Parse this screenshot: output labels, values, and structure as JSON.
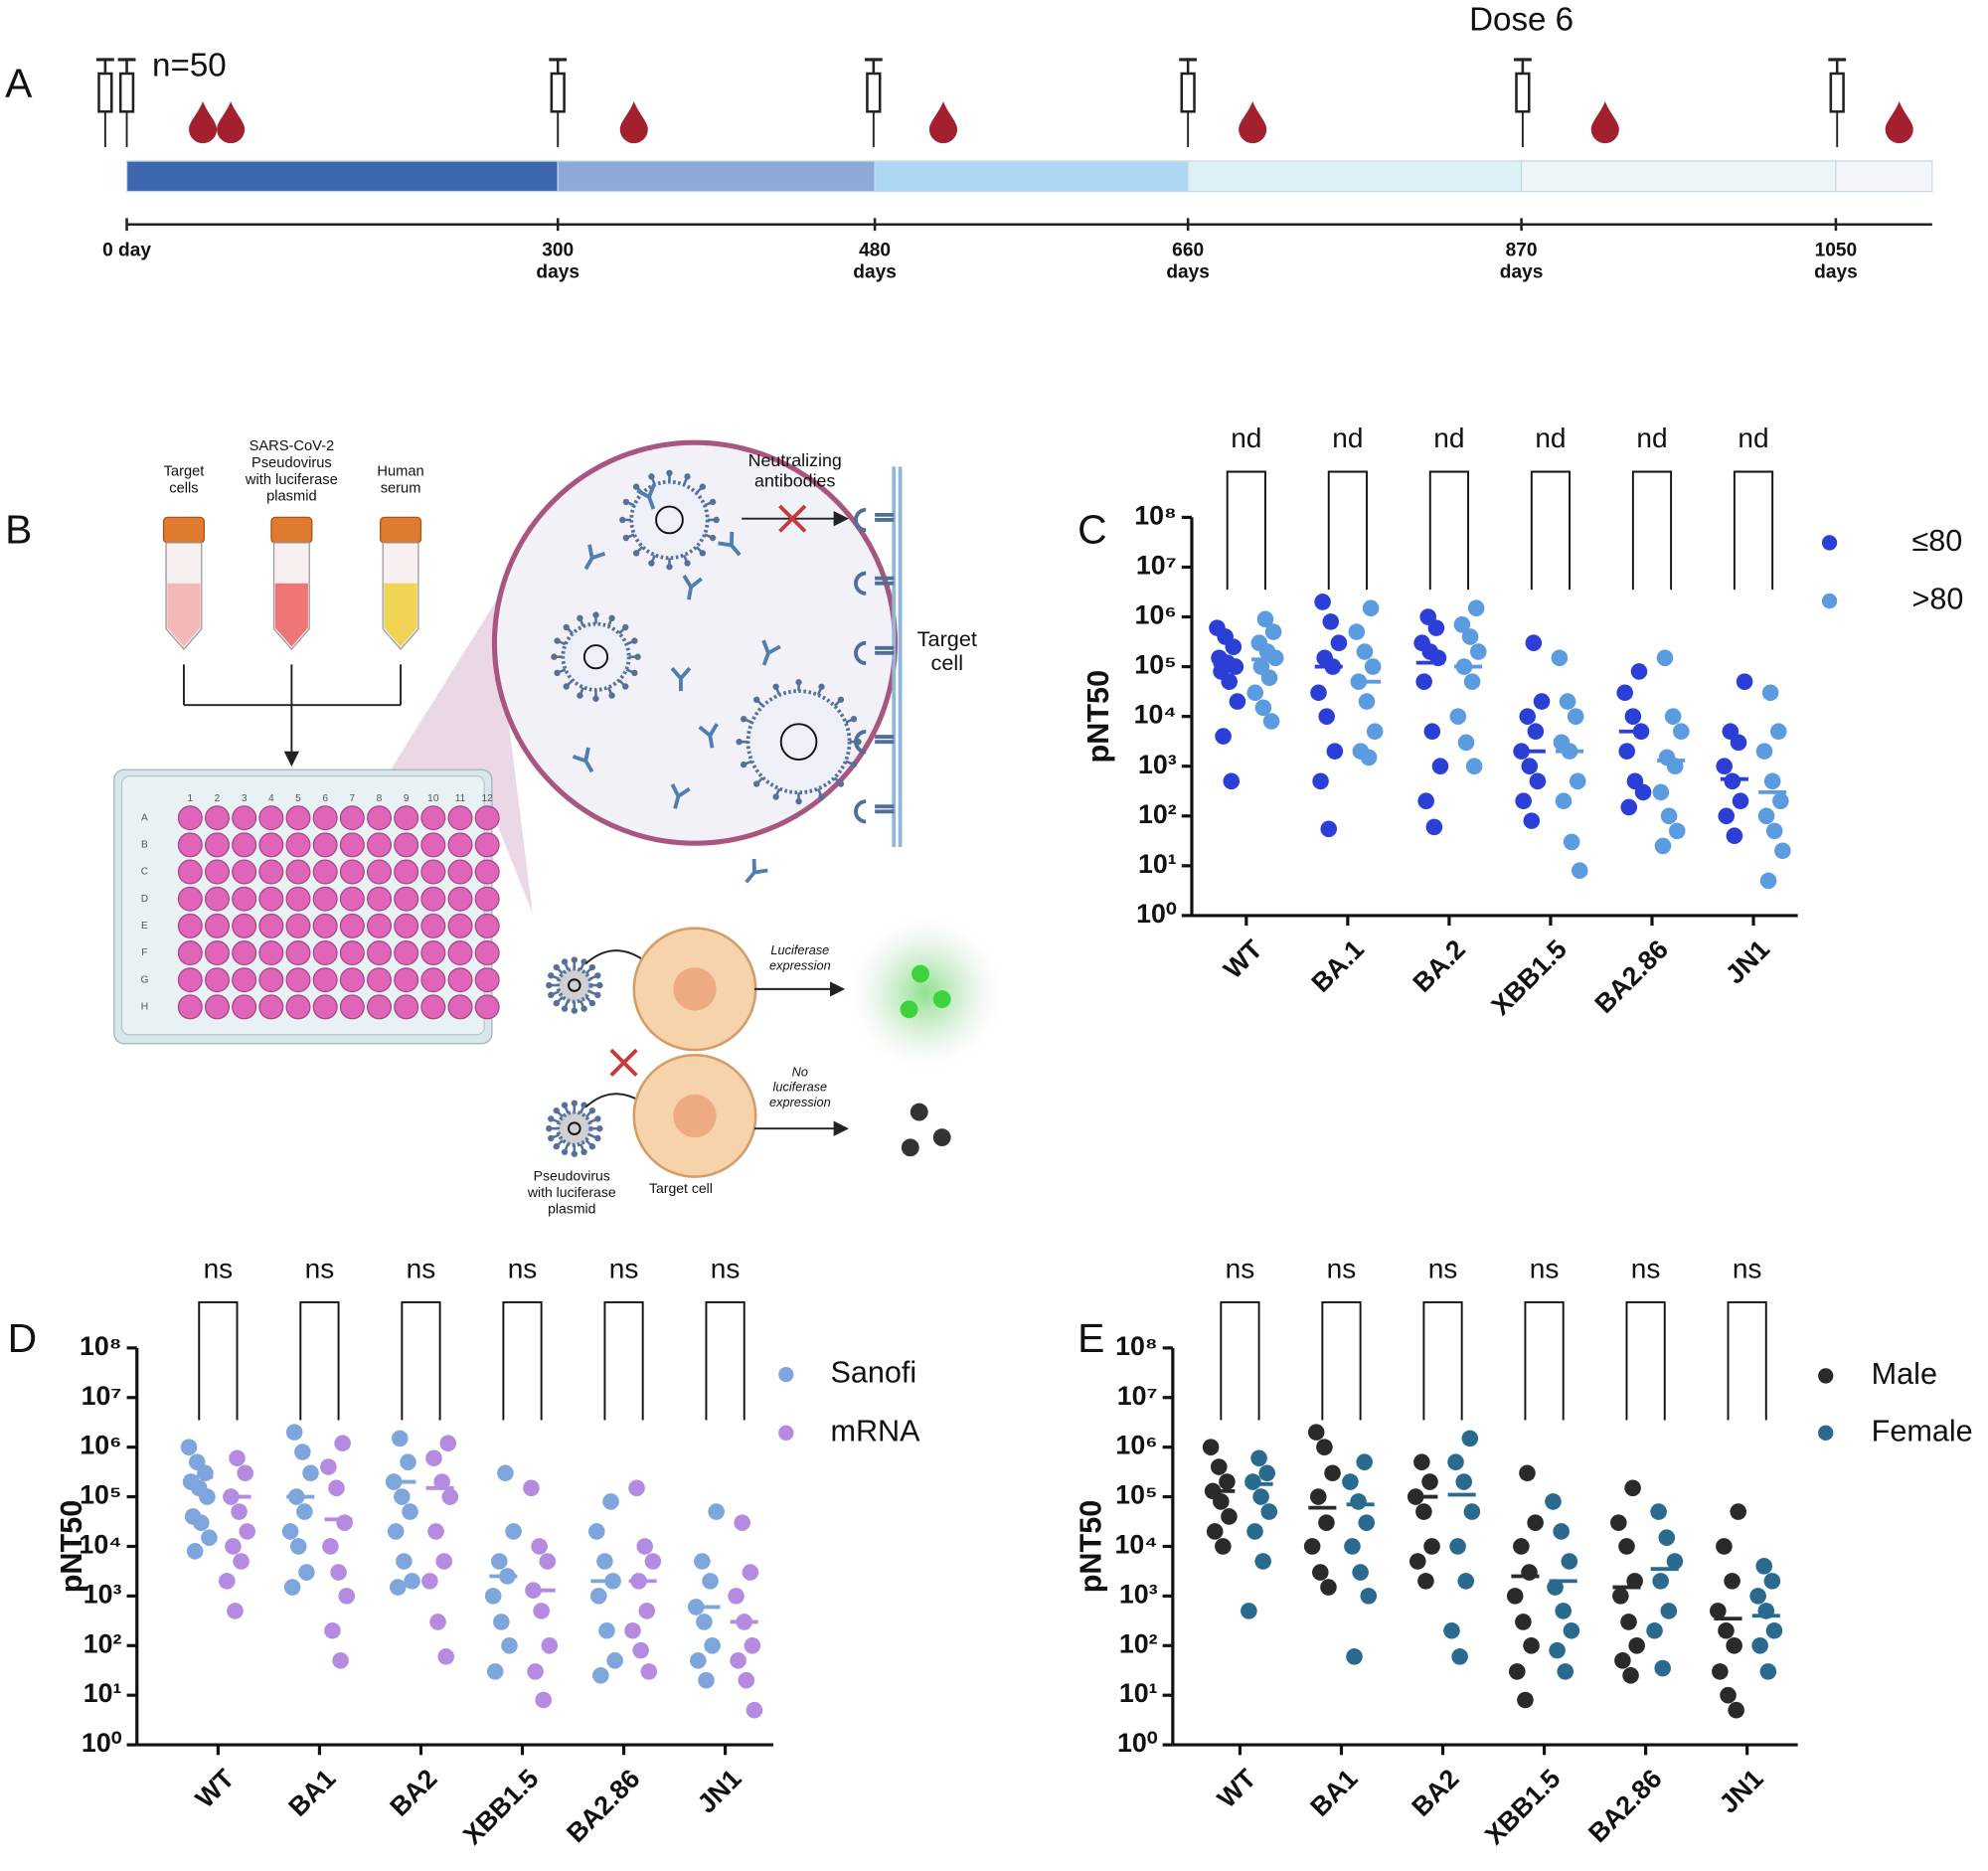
{
  "timeline": {
    "panel": "A",
    "cohort": "n=50",
    "dose_label": "Dose 6",
    "ticks": [
      [
        "0 day"
      ],
      [
        "300",
        "days"
      ],
      [
        "480",
        "days"
      ],
      [
        "660",
        "days"
      ],
      [
        "870",
        "days"
      ],
      [
        "1050",
        "days"
      ]
    ]
  },
  "diagram": {
    "panel": "B",
    "tubes": [
      [
        "Target",
        "cells"
      ],
      [
        "SARS-CoV-2",
        "Pseudovirus",
        "with luciferase",
        "plasmid"
      ],
      [
        "Human",
        "serum"
      ]
    ],
    "plate_rows": [
      "A",
      "B",
      "C",
      "D",
      "E",
      "F",
      "G",
      "H"
    ],
    "plate_columns": [
      "1",
      "2",
      "3",
      "4",
      "5",
      "6",
      "7",
      "8",
      "9",
      "10",
      "11",
      "12"
    ],
    "antibodies": [
      "Neutralizing",
      "antibodies"
    ],
    "membrane": [
      "Target",
      "cell"
    ],
    "positive": [
      "Luciferase",
      "expression"
    ],
    "negative": [
      "No",
      "luciferase",
      "expression"
    ],
    "pseudovirus": [
      "Pseudovirus",
      "with luciferase",
      "plasmid"
    ],
    "target": [
      "Target cell"
    ]
  },
  "chart_data": [
    {
      "type": "strip",
      "panel": "C",
      "ylabel": "pNT50",
      "log_scale": true,
      "legend": "right",
      "categories": [
        "WT",
        "BA.1",
        "BA.2",
        "XBB1.5",
        "BA2.86",
        "JN1"
      ],
      "brackets": [
        "nd",
        "nd",
        "nd",
        "nd",
        "nd",
        "nd"
      ],
      "ylim": [
        1,
        100000000.0
      ],
      "yticks": [
        {
          "value": 1,
          "label": "10⁰"
        },
        {
          "value": 10,
          "label": "10¹"
        },
        {
          "value": 100,
          "label": "10²"
        },
        {
          "value": 1000,
          "label": "10³"
        },
        {
          "value": 10000,
          "label": "10⁴"
        },
        {
          "value": 100000,
          "label": "10⁵"
        },
        {
          "value": 1000000,
          "label": "10⁶"
        },
        {
          "value": 10000000,
          "label": "10⁷"
        },
        {
          "value": 100000000,
          "label": "10⁸"
        }
      ],
      "series": [
        {
          "name": "≤80",
          "color": "#2b3fd6",
          "values": [
            [
              600000.0,
              400000.0,
              250000.0,
              150000.0,
              120000.0,
              100000.0,
              80000.0,
              50000.0,
              20000.0,
              4000.0,
              500.0
            ],
            [
              2000000.0,
              800000.0,
              300000.0,
              150000.0,
              100000.0,
              30000.0,
              10000.0,
              2000.0,
              500.0,
              55
            ],
            [
              1000000.0,
              600000.0,
              300000.0,
              200000.0,
              150000.0,
              50000.0,
              5000.0,
              1000.0,
              200.0,
              60
            ],
            [
              300000.0,
              20000.0,
              10000.0,
              5000.0,
              2000.0,
              1000.0,
              500.0,
              200.0,
              80
            ],
            [
              80000.0,
              30000.0,
              10000.0,
              5000.0,
              2000.0,
              500.0,
              300.0,
              150.0
            ],
            [
              50000.0,
              5000.0,
              3000.0,
              1000.0,
              500.0,
              200.0,
              100.0,
              40
            ]
          ],
          "medians": [
            110000.0,
            100000.0,
            120000.0,
            2000.0,
            5000.0,
            550.0
          ]
        },
        {
          "name": ">80",
          "color": "#5b9be0",
          "values": [
            [
              900000.0,
              500000.0,
              300000.0,
              200000.0,
              150000.0,
              100000.0,
              60000.0,
              30000.0,
              15000.0,
              8000.0
            ],
            [
              1500000.0,
              500000.0,
              200000.0,
              100000.0,
              50000.0,
              20000.0,
              5000.0,
              2000.0,
              1500.0
            ],
            [
              1500000.0,
              700000.0,
              400000.0,
              200000.0,
              100000.0,
              50000.0,
              10000.0,
              3000.0,
              1000.0
            ],
            [
              150000.0,
              20000.0,
              10000.0,
              3000.0,
              2000.0,
              500.0,
              200.0,
              30,
              8
            ],
            [
              150000.0,
              10000.0,
              5000.0,
              1500.0,
              1000.0,
              300.0,
              100.0,
              50,
              25
            ],
            [
              30000.0,
              5000.0,
              2000.0,
              500.0,
              200.0,
              100.0,
              50,
              20,
              5
            ]
          ],
          "medians": [
            140000.0,
            50000.0,
            100000.0,
            2000.0,
            1300.0,
            300.0
          ]
        }
      ]
    },
    {
      "type": "strip",
      "panel": "D",
      "ylabel": "pNT50",
      "log_scale": true,
      "legend": "right",
      "categories": [
        "WT",
        "BA1",
        "BA2",
        "XBB1.5",
        "BA2.86",
        "JN1"
      ],
      "brackets": [
        "ns",
        "ns",
        "ns",
        "ns",
        "ns",
        "ns"
      ],
      "ylim": [
        1,
        100000000.0
      ],
      "yticks": [
        {
          "value": 1,
          "label": "10⁰"
        },
        {
          "value": 10,
          "label": "10¹"
        },
        {
          "value": 100,
          "label": "10²"
        },
        {
          "value": 1000,
          "label": "10³"
        },
        {
          "value": 10000,
          "label": "10⁴"
        },
        {
          "value": 100000,
          "label": "10⁵"
        },
        {
          "value": 1000000,
          "label": "10⁶"
        },
        {
          "value": 10000000,
          "label": "10⁷"
        },
        {
          "value": 100000000,
          "label": "10⁸"
        }
      ],
      "series": [
        {
          "name": "Sanofi",
          "color": "#7fa6dc",
          "values": [
            [
              1000000.0,
              500000.0,
              300000.0,
              200000.0,
              150000.0,
              100000.0,
              40000.0,
              30000.0,
              15000.0,
              8000.0
            ],
            [
              2000000.0,
              800000.0,
              300000.0,
              100000.0,
              50000.0,
              20000.0,
              10000.0,
              3000.0,
              1500.0
            ],
            [
              1500000.0,
              500000.0,
              200000.0,
              100000.0,
              50000.0,
              20000.0,
              5000.0,
              2000.0,
              1500.0
            ],
            [
              300000.0,
              20000.0,
              5000.0,
              2500.0,
              1000.0,
              300.0,
              100.0,
              30
            ],
            [
              80000.0,
              20000.0,
              5000.0,
              2000.0,
              1000.0,
              200.0,
              50,
              25
            ],
            [
              50000.0,
              5000.0,
              2000.0,
              600.0,
              300.0,
              100.0,
              50,
              20
            ]
          ],
          "medians": [
            250000.0,
            100000.0,
            200000.0,
            2500.0,
            2000.0,
            600.0
          ]
        },
        {
          "name": "mRNA",
          "color": "#b48be0",
          "values": [
            [
              600000.0,
              300000.0,
              100000.0,
              50000.0,
              20000.0,
              10000.0,
              5000.0,
              2000.0,
              500.0
            ],
            [
              1200000.0,
              400000.0,
              150000.0,
              30000.0,
              10000.0,
              3000.0,
              1000.0,
              200.0,
              50
            ],
            [
              1200000.0,
              600000.0,
              200000.0,
              100000.0,
              20000.0,
              5000.0,
              2000.0,
              300.0,
              60
            ],
            [
              150000.0,
              10000.0,
              5000.0,
              1300.0,
              500.0,
              100.0,
              30,
              8
            ],
            [
              150000.0,
              10000.0,
              5000.0,
              2000.0,
              500.0,
              200.0,
              80,
              30
            ],
            [
              30000.0,
              3000.0,
              1000.0,
              300.0,
              100.0,
              50,
              20,
              5
            ]
          ],
          "medians": [
            100000.0,
            35000.0,
            150000.0,
            1300.0,
            2000.0,
            300.0
          ]
        }
      ]
    },
    {
      "type": "strip",
      "panel": "E",
      "ylabel": "pNT50",
      "log_scale": true,
      "legend": "right",
      "categories": [
        "WT",
        "BA1",
        "BA2",
        "XBB1.5",
        "BA2.86",
        "JN1"
      ],
      "brackets": [
        "ns",
        "ns",
        "ns",
        "ns",
        "ns",
        "ns"
      ],
      "ylim": [
        1,
        100000000.0
      ],
      "yticks": [
        {
          "value": 1,
          "label": "10⁰"
        },
        {
          "value": 10,
          "label": "10¹"
        },
        {
          "value": 100,
          "label": "10²"
        },
        {
          "value": 1000,
          "label": "10³"
        },
        {
          "value": 10000,
          "label": "10⁴"
        },
        {
          "value": 100000,
          "label": "10⁵"
        },
        {
          "value": 1000000,
          "label": "10⁶"
        },
        {
          "value": 10000000,
          "label": "10⁷"
        },
        {
          "value": 100000000,
          "label": "10⁸"
        }
      ],
      "series": [
        {
          "name": "Male",
          "color": "#2a2a2a",
          "values": [
            [
              1000000.0,
              400000.0,
              200000.0,
              130000.0,
              80000.0,
              40000.0,
              20000.0,
              10000.0
            ],
            [
              2000000.0,
              1000000.0,
              300000.0,
              100000.0,
              30000.0,
              10000.0,
              3000.0,
              1500.0
            ],
            [
              500000.0,
              200000.0,
              100000.0,
              50000.0,
              10000.0,
              5000.0,
              2000.0
            ],
            [
              300000.0,
              30000.0,
              10000.0,
              3000.0,
              1000.0,
              300.0,
              100.0,
              30,
              8
            ],
            [
              150000.0,
              30000.0,
              10000.0,
              2000.0,
              1000.0,
              300.0,
              100.0,
              50,
              25
            ],
            [
              50000.0,
              10000.0,
              2000.0,
              500.0,
              200.0,
              100.0,
              30,
              10,
              5
            ]
          ],
          "medians": [
            130000.0,
            60000.0,
            100000.0,
            2500.0,
            1500.0,
            350.0
          ]
        },
        {
          "name": "Female",
          "color": "#2a6a8e",
          "values": [
            [
              600000.0,
              300000.0,
              200000.0,
              100000.0,
              50000.0,
              20000.0,
              5000.0,
              500.0
            ],
            [
              500000.0,
              200000.0,
              80000.0,
              30000.0,
              10000.0,
              3000.0,
              1000.0,
              60
            ],
            [
              1500000.0,
              500000.0,
              200000.0,
              50000.0,
              10000.0,
              2000.0,
              200.0,
              60
            ],
            [
              80000.0,
              20000.0,
              5000.0,
              1500.0,
              500.0,
              200.0,
              80,
              30
            ],
            [
              50000.0,
              15000.0,
              5000.0,
              2000.0,
              500.0,
              200.0,
              35
            ],
            [
              4000.0,
              2000.0,
              1000.0,
              500.0,
              200.0,
              100.0,
              30
            ]
          ],
          "medians": [
            180000.0,
            70000.0,
            110000.0,
            2000.0,
            3500.0,
            400.0
          ]
        }
      ]
    }
  ]
}
